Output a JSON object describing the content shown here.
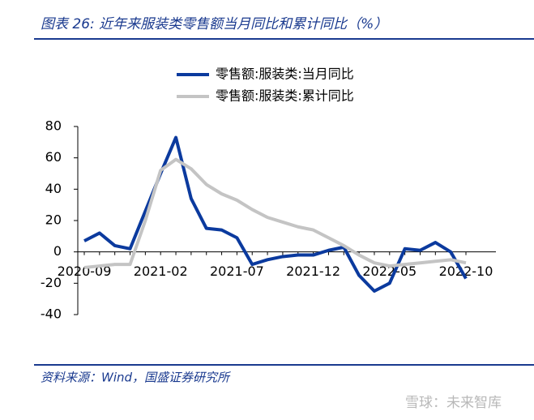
{
  "header": {
    "title": "图表 26:  近年来服装类零售额当月同比和累计同比（%）"
  },
  "chart_data": {
    "type": "line",
    "categories": [
      "2020-09",
      null,
      null,
      null,
      null,
      "2021-02",
      null,
      null,
      null,
      null,
      "2021-07",
      null,
      null,
      null,
      null,
      "2021-12",
      null,
      null,
      null,
      null,
      "2022-05",
      null,
      null,
      null,
      null,
      "2022-10"
    ],
    "series": [
      {
        "name": "零售额:服装类:当月同比",
        "color": "#0b3a9e",
        "values": [
          7,
          12,
          4,
          2,
          26,
          50,
          73,
          34,
          15,
          14,
          9,
          -8,
          -5,
          -3,
          -2,
          -2,
          1,
          3,
          -15,
          -25,
          -20,
          2,
          1,
          6,
          0,
          -17
        ]
      },
      {
        "name": "零售额:服装类:累计同比",
        "color": "#c4c4c4",
        "values": [
          -10,
          -9,
          -8,
          -8,
          20,
          52,
          59,
          53,
          43,
          37,
          33,
          27,
          22,
          19,
          16,
          14,
          9,
          4,
          -2,
          -7,
          -9,
          -8,
          -7,
          -6,
          -5,
          -7
        ]
      }
    ],
    "ylim": [
      -40,
      80
    ],
    "yticks": [
      -40,
      -20,
      0,
      20,
      40,
      60,
      80
    ],
    "legend": "top"
  },
  "footer": {
    "source": "资料来源：Wind，国盛证券研究所",
    "watermark": "雪球：未来智库"
  }
}
